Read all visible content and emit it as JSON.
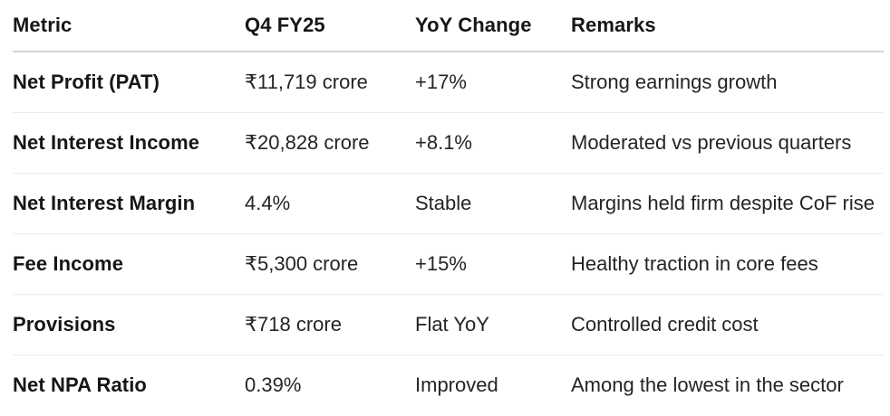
{
  "chart_data": {
    "type": "table",
    "columns": [
      "Metric",
      "Q4 FY25",
      "YoY Change",
      "Remarks"
    ],
    "rows": [
      {
        "metric": "Net Profit (PAT)",
        "value": "₹11,719 crore",
        "yoy": "+17%",
        "remarks": "Strong earnings growth"
      },
      {
        "metric": "Net Interest Income",
        "value": "₹20,828 crore",
        "yoy": "+8.1%",
        "remarks": "Moderated vs previous quarters"
      },
      {
        "metric": "Net Interest Margin",
        "value": "4.4%",
        "yoy": "Stable",
        "remarks": "Margins held firm despite CoF rise"
      },
      {
        "metric": "Fee Income",
        "value": "₹5,300 crore",
        "yoy": "+15%",
        "remarks": "Healthy traction in core fees"
      },
      {
        "metric": "Provisions",
        "value": "₹718 crore",
        "yoy": "Flat YoY",
        "remarks": "Controlled credit cost"
      },
      {
        "metric": "Net NPA Ratio",
        "value": "0.39%",
        "yoy": "Improved",
        "remarks": "Among the lowest in the sector"
      }
    ]
  },
  "colors": {
    "text_strong": "#161616",
    "text_regular": "#242424",
    "header_rule": "#d4d4d4",
    "row_rule": "#ededed",
    "background": "#ffffff"
  }
}
